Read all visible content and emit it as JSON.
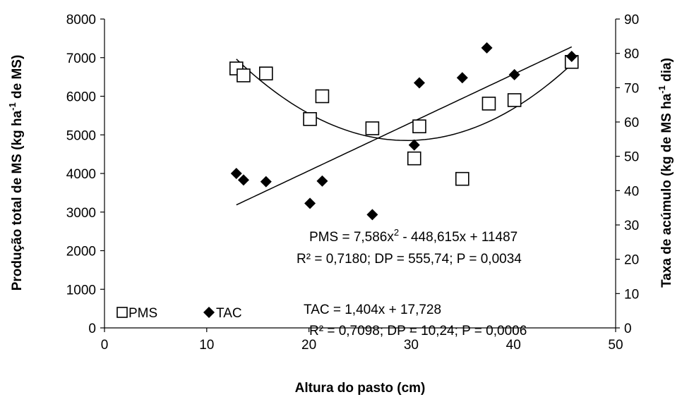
{
  "chart_data": {
    "type": "scatter",
    "xlabel": "Altura do pasto (cm)",
    "ylabel_left": [
      "Produção total de MS (kg ha",
      "-1",
      " de MS)"
    ],
    "ylabel_right": [
      "Taxa de acúmulo (kg de MS ha",
      "-1",
      " dia)"
    ],
    "xlim": [
      0,
      50
    ],
    "ylim_left": [
      0,
      8000
    ],
    "ylim_right": [
      0,
      90
    ],
    "x_ticks": [
      "0",
      "10",
      "20",
      "30",
      "40",
      "50"
    ],
    "y_left_ticks": [
      "0",
      "1000",
      "2000",
      "3000",
      "4000",
      "5000",
      "6000",
      "7000",
      "8000"
    ],
    "y_right_ticks": [
      "0",
      "10",
      "20",
      "30",
      "40",
      "50",
      "60",
      "70",
      "80",
      "90"
    ],
    "grid": false,
    "legend_position": "bottom-left",
    "series": [
      {
        "name": "PMS",
        "axis": "left",
        "marker": "open-square",
        "points": [
          [
            12.9,
            6720
          ],
          [
            13.6,
            6540
          ],
          [
            15.8,
            6590
          ],
          [
            20.1,
            5410
          ],
          [
            21.3,
            6000
          ],
          [
            26.2,
            5170
          ],
          [
            30.3,
            4390
          ],
          [
            30.8,
            5220
          ],
          [
            35.0,
            3860
          ],
          [
            37.6,
            5810
          ],
          [
            40.1,
            5900
          ],
          [
            45.7,
            6890
          ]
        ]
      },
      {
        "name": "TAC",
        "axis": "right",
        "marker": "filled-diamond",
        "points": [
          [
            12.9,
            45.0
          ],
          [
            13.6,
            43.1
          ],
          [
            15.8,
            42.6
          ],
          [
            20.1,
            36.3
          ],
          [
            21.3,
            42.8
          ],
          [
            26.2,
            33.0
          ],
          [
            30.3,
            53.3
          ],
          [
            30.8,
            71.4
          ],
          [
            35.0,
            72.9
          ],
          [
            37.4,
            81.6
          ],
          [
            40.1,
            73.8
          ],
          [
            45.7,
            79.1
          ]
        ]
      }
    ],
    "trendlines": [
      {
        "series": "PMS",
        "kind": "quadratic",
        "coefficients": [
          11487,
          -448.615,
          7.586
        ],
        "x_range": [
          12.9,
          45.7
        ]
      },
      {
        "series": "TAC",
        "kind": "linear",
        "coefficients": [
          17.728,
          1.404
        ],
        "x_range": [
          12.9,
          45.7
        ]
      }
    ],
    "annotations": {
      "pms_eq": [
        "PMS = 7,586x",
        "2",
        " - 448,615x + 11487"
      ],
      "pms_stats": "R² = 0,7180; DP = 555,74; P = 0,0034",
      "tac_eq": "TAC = 1,404x + 17,728",
      "tac_stats": "R² = 0,7098; DP = 10,24; P = 0,0006"
    },
    "colors": {
      "axis": "#000000",
      "marker": "#000000",
      "background": "#ffffff"
    }
  }
}
